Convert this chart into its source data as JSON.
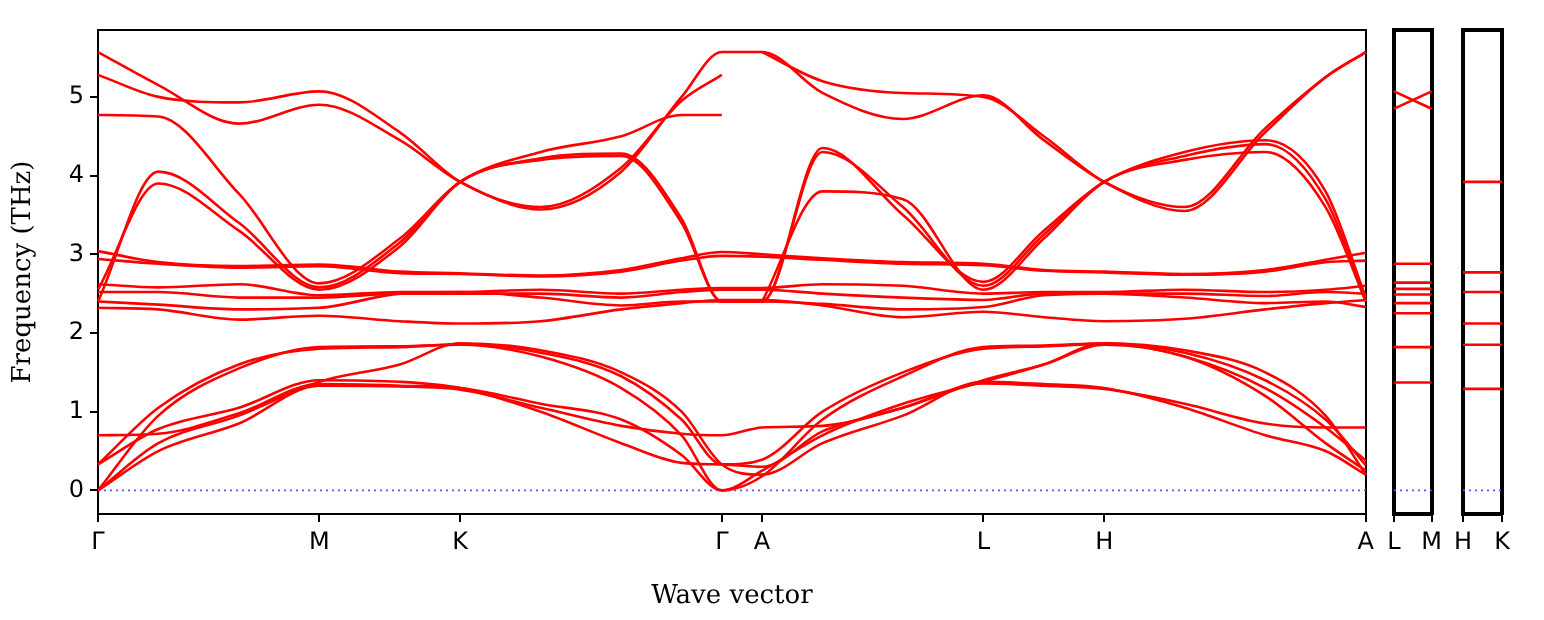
{
  "chart_data": [
    {
      "type": "line",
      "xlabel": "Wave vector",
      "ylabel": "Frequency (THz)",
      "marker": "none",
      "ylim": [
        -0.3,
        5.85
      ],
      "yticks": [
        0,
        1,
        2,
        3,
        4,
        5
      ],
      "categories": [
        "Γ",
        null,
        null,
        null,
        null,
        null,
        null,
        null,
        null,
        null,
        null,
        "M",
        null,
        null,
        null,
        null,
        null,
        null,
        "K",
        null,
        null,
        null,
        null,
        null,
        null,
        null,
        null,
        null,
        null,
        null,
        null,
        "Γ",
        null,
        "A",
        null,
        null,
        null,
        null,
        null,
        null,
        null,
        null,
        null,
        null,
        "L",
        null,
        null,
        null,
        null,
        null,
        "H",
        null,
        null,
        null,
        null,
        null,
        null,
        null,
        null,
        null,
        null,
        null,
        null,
        "A"
      ],
      "ref_lines": [
        {
          "axis": "y",
          "value": 0,
          "color": "#5555ff",
          "line_style": "dotted"
        }
      ],
      "series": [
        {
          "color": "#ff0000",
          "values": [
            5.57,
            null,
            null,
            5.15,
            null,
            null,
            null,
            4.66,
            null,
            null,
            null,
            4.9,
            null,
            null,
            null,
            4.45,
            null,
            null,
            3.92,
            null,
            null,
            null,
            3.57,
            null,
            null,
            null,
            4.05,
            null,
            null,
            5.0,
            null,
            5.57,
            null,
            5.57,
            null,
            null,
            5.05,
            null,
            null,
            null,
            4.72,
            null,
            null,
            null,
            5.02,
            null,
            null,
            4.45,
            null,
            null,
            3.92,
            null,
            null,
            null,
            3.55,
            null,
            null,
            null,
            4.55,
            null,
            null,
            5.25,
            null,
            5.57
          ]
        },
        {
          "color": "#ff0000",
          "values": [
            5.28,
            null,
            null,
            5.0,
            null,
            null,
            null,
            4.93,
            null,
            null,
            null,
            5.07,
            null,
            null,
            null,
            4.55,
            null,
            null,
            3.92,
            null,
            null,
            null,
            3.6,
            null,
            null,
            null,
            4.1,
            null,
            null,
            4.95,
            null,
            5.28,
            null,
            null,
            null,
            null,
            null,
            null,
            null,
            null,
            null,
            null,
            null,
            null,
            null,
            null,
            null,
            null,
            null,
            null,
            null,
            null,
            null,
            null,
            null,
            null,
            null,
            null,
            null,
            null,
            null,
            null,
            null,
            null
          ]
        },
        {
          "color": "#ff0000",
          "values": [
            4.77,
            null,
            null,
            4.75,
            null,
            null,
            null,
            3.77,
            null,
            null,
            null,
            2.63,
            null,
            null,
            null,
            3.2,
            null,
            null,
            3.92,
            null,
            null,
            null,
            4.3,
            null,
            null,
            null,
            4.5,
            null,
            null,
            4.77,
            null,
            4.77,
            null,
            null,
            null,
            null,
            null,
            null,
            null,
            null,
            null,
            null,
            null,
            null,
            null,
            null,
            null,
            null,
            null,
            null,
            null,
            null,
            null,
            null,
            null,
            null,
            null,
            null,
            null,
            null,
            null,
            null,
            null,
            null
          ]
        },
        {
          "color": "#ff0000",
          "values": [
            null,
            null,
            null,
            null,
            null,
            null,
            null,
            null,
            null,
            null,
            null,
            null,
            null,
            null,
            null,
            null,
            null,
            null,
            null,
            null,
            null,
            null,
            null,
            null,
            null,
            null,
            null,
            null,
            null,
            null,
            null,
            null,
            null,
            5.57,
            null,
            null,
            5.2,
            null,
            null,
            null,
            5.05,
            null,
            null,
            null,
            5.0,
            null,
            null,
            4.5,
            null,
            null,
            3.92,
            null,
            null,
            null,
            3.6,
            null,
            null,
            null,
            4.6,
            null,
            null,
            5.25,
            null,
            5.57
          ]
        },
        {
          "color": "#ff0000",
          "values": [
            2.4,
            null,
            null,
            4.05,
            null,
            null,
            null,
            3.4,
            null,
            null,
            null,
            2.58,
            null,
            null,
            null,
            3.15,
            null,
            null,
            3.92,
            null,
            null,
            null,
            4.22,
            null,
            null,
            null,
            4.28,
            null,
            null,
            3.45,
            null,
            2.4,
            null,
            2.4,
            null,
            null,
            4.35,
            null,
            null,
            null,
            3.5,
            null,
            null,
            null,
            2.65,
            null,
            null,
            3.3,
            null,
            null,
            3.92,
            null,
            null,
            null,
            4.3,
            null,
            null,
            null,
            4.45,
            null,
            null,
            3.8,
            null,
            2.45
          ]
        },
        {
          "color": "#ff0000",
          "values": [
            2.55,
            null,
            null,
            3.9,
            null,
            null,
            null,
            3.3,
            null,
            null,
            null,
            2.55,
            null,
            null,
            null,
            3.1,
            null,
            null,
            3.92,
            null,
            null,
            null,
            4.2,
            null,
            null,
            null,
            4.25,
            null,
            null,
            3.4,
            null,
            2.4,
            null,
            2.4,
            null,
            null,
            4.3,
            null,
            null,
            null,
            3.6,
            null,
            null,
            null,
            2.6,
            null,
            null,
            3.25,
            null,
            null,
            3.92,
            null,
            null,
            null,
            4.25,
            null,
            null,
            null,
            4.4,
            null,
            null,
            3.7,
            null,
            2.4
          ]
        },
        {
          "color": "#ff0000",
          "values": [
            null,
            null,
            null,
            null,
            null,
            null,
            null,
            null,
            null,
            null,
            null,
            null,
            null,
            null,
            null,
            null,
            null,
            null,
            null,
            null,
            null,
            null,
            null,
            null,
            null,
            null,
            null,
            null,
            null,
            null,
            null,
            null,
            null,
            2.4,
            null,
            null,
            3.8,
            null,
            null,
            null,
            3.7,
            null,
            null,
            null,
            2.55,
            null,
            null,
            3.2,
            null,
            null,
            3.92,
            null,
            null,
            null,
            4.2,
            null,
            null,
            null,
            4.3,
            null,
            null,
            3.6,
            null,
            2.4
          ]
        },
        {
          "color": "#ff0000",
          "values": [
            3.04,
            null,
            null,
            2.9,
            null,
            null,
            null,
            2.85,
            null,
            null,
            null,
            2.87,
            null,
            null,
            null,
            2.78,
            null,
            null,
            2.76,
            null,
            null,
            null,
            2.73,
            null,
            null,
            null,
            2.8,
            null,
            null,
            2.95,
            null,
            3.03,
            null,
            3.0,
            null,
            null,
            2.95,
            null,
            null,
            null,
            2.9,
            null,
            null,
            null,
            2.88,
            null,
            null,
            2.8,
            null,
            null,
            2.78,
            null,
            null,
            null,
            2.75,
            null,
            null,
            null,
            2.8,
            null,
            null,
            2.93,
            null,
            3.02
          ]
        },
        {
          "color": "#ff0000",
          "values": [
            2.94,
            null,
            null,
            2.88,
            null,
            null,
            null,
            2.83,
            null,
            null,
            null,
            2.85,
            null,
            null,
            null,
            2.76,
            null,
            null,
            2.75,
            null,
            null,
            null,
            2.72,
            null,
            null,
            null,
            2.78,
            null,
            null,
            2.92,
            null,
            2.98,
            null,
            2.97,
            null,
            null,
            2.93,
            null,
            null,
            null,
            2.88,
            null,
            null,
            null,
            2.86,
            null,
            null,
            2.79,
            null,
            null,
            2.77,
            null,
            null,
            null,
            2.74,
            null,
            null,
            null,
            2.78,
            null,
            null,
            2.9,
            null,
            2.92
          ]
        },
        {
          "color": "#ff0000",
          "values": [
            2.62,
            null,
            null,
            2.58,
            null,
            null,
            null,
            2.62,
            null,
            null,
            null,
            2.48,
            null,
            null,
            null,
            2.52,
            null,
            null,
            2.52,
            null,
            null,
            null,
            2.55,
            null,
            null,
            null,
            2.5,
            null,
            null,
            2.55,
            null,
            2.57,
            null,
            2.57,
            null,
            null,
            2.62,
            null,
            null,
            null,
            2.6,
            null,
            null,
            null,
            2.5,
            null,
            null,
            2.52,
            null,
            null,
            2.52,
            null,
            null,
            null,
            2.55,
            null,
            null,
            null,
            2.52,
            null,
            null,
            2.55,
            null,
            2.6
          ]
        },
        {
          "color": "#ff0000",
          "values": [
            2.52,
            null,
            null,
            2.52,
            null,
            null,
            null,
            2.45,
            null,
            null,
            null,
            2.45,
            null,
            null,
            null,
            2.5,
            null,
            null,
            2.5,
            null,
            null,
            null,
            2.5,
            null,
            null,
            null,
            2.45,
            null,
            null,
            2.52,
            null,
            2.55,
            null,
            2.55,
            null,
            null,
            2.5,
            null,
            null,
            null,
            2.45,
            null,
            null,
            null,
            2.42,
            null,
            null,
            2.5,
            null,
            null,
            2.5,
            null,
            null,
            null,
            2.5,
            null,
            null,
            null,
            2.47,
            null,
            null,
            2.52,
            null,
            2.5
          ]
        },
        {
          "color": "#ff0000",
          "values": [
            2.32,
            null,
            null,
            2.3,
            null,
            null,
            null,
            2.17,
            null,
            null,
            null,
            2.22,
            null,
            null,
            null,
            2.15,
            null,
            null,
            2.12,
            null,
            null,
            null,
            2.15,
            null,
            null,
            null,
            2.3,
            null,
            null,
            2.38,
            null,
            2.42,
            null,
            2.42,
            null,
            null,
            2.35,
            null,
            null,
            null,
            2.2,
            null,
            null,
            null,
            2.27,
            null,
            null,
            2.2,
            null,
            null,
            2.15,
            null,
            null,
            null,
            2.18,
            null,
            null,
            null,
            2.3,
            null,
            null,
            2.38,
            null,
            2.42
          ]
        },
        {
          "color": "#ff0000",
          "values": [
            2.4,
            null,
            null,
            2.36,
            null,
            null,
            null,
            2.3,
            null,
            null,
            null,
            2.32,
            null,
            null,
            null,
            2.5,
            null,
            null,
            2.52,
            null,
            null,
            null,
            2.45,
            null,
            null,
            null,
            2.35,
            null,
            null,
            2.4,
            null,
            2.4,
            null,
            2.4,
            null,
            null,
            2.37,
            null,
            null,
            null,
            2.3,
            null,
            null,
            null,
            2.33,
            null,
            null,
            2.48,
            null,
            null,
            2.5,
            null,
            null,
            null,
            2.45,
            null,
            null,
            null,
            2.38,
            null,
            null,
            2.4,
            null,
            2.33
          ]
        },
        {
          "color": "#ff0000",
          "values": [
            0,
            null,
            null,
            0.95,
            null,
            null,
            null,
            1.55,
            null,
            null,
            null,
            1.82,
            null,
            null,
            null,
            1.83,
            null,
            null,
            1.85,
            null,
            null,
            null,
            1.7,
            null,
            null,
            null,
            1.3,
            null,
            null,
            0.7,
            null,
            0,
            null,
            0.18,
            null,
            null,
            0.9,
            null,
            null,
            null,
            1.45,
            null,
            null,
            null,
            1.82,
            null,
            null,
            1.84,
            null,
            null,
            1.87,
            null,
            null,
            null,
            1.7,
            null,
            null,
            null,
            1.3,
            null,
            null,
            0.8,
            null,
            0.38
          ]
        },
        {
          "color": "#ff0000",
          "values": [
            0.33,
            null,
            null,
            1.05,
            null,
            null,
            null,
            1.6,
            null,
            null,
            null,
            1.8,
            null,
            null,
            null,
            1.82,
            null,
            null,
            1.86,
            null,
            null,
            null,
            1.75,
            null,
            null,
            null,
            1.45,
            null,
            null,
            0.9,
            null,
            0.33,
            null,
            0.39,
            null,
            null,
            1.0,
            null,
            null,
            null,
            1.5,
            null,
            null,
            null,
            1.8,
            null,
            null,
            1.83,
            null,
            null,
            1.86,
            null,
            null,
            null,
            1.75,
            null,
            null,
            null,
            1.4,
            null,
            null,
            0.9,
            null,
            0.32
          ]
        },
        {
          "color": "#ff0000",
          "values": [
            0,
            null,
            null,
            0.6,
            null,
            null,
            null,
            0.95,
            null,
            null,
            null,
            1.38,
            null,
            null,
            null,
            1.6,
            null,
            null,
            1.87,
            null,
            null,
            null,
            1.78,
            null,
            null,
            null,
            1.5,
            null,
            null,
            1.0,
            null,
            0.33,
            null,
            0.2,
            null,
            null,
            0.6,
            null,
            null,
            null,
            0.95,
            null,
            null,
            null,
            1.38,
            null,
            null,
            1.35,
            null,
            null,
            1.3,
            null,
            null,
            null,
            1.05,
            null,
            null,
            null,
            0.7,
            null,
            null,
            0.5,
            null,
            0.2
          ]
        },
        {
          "color": "#ff0000",
          "values": [
            0,
            null,
            null,
            0.5,
            null,
            null,
            null,
            0.85,
            null,
            null,
            null,
            1.33,
            null,
            null,
            null,
            1.32,
            null,
            null,
            1.28,
            null,
            null,
            null,
            1.05,
            null,
            null,
            null,
            0.82,
            null,
            null,
            0.72,
            null,
            0.7,
            null,
            0.8,
            null,
            null,
            0.82,
            null,
            null,
            null,
            1.05,
            null,
            null,
            null,
            1.36,
            null,
            null,
            1.33,
            null,
            null,
            1.29,
            null,
            null,
            null,
            1.1,
            null,
            null,
            null,
            0.85,
            null,
            null,
            0.8,
            null,
            0.8
          ]
        },
        {
          "color": "#ff0000",
          "values": [
            0.7,
            null,
            null,
            0.72,
            null,
            null,
            null,
            0.98,
            null,
            null,
            null,
            1.35,
            null,
            null,
            null,
            1.33,
            null,
            null,
            1.3,
            null,
            null,
            null,
            1.1,
            null,
            null,
            null,
            0.9,
            null,
            null,
            0.45,
            null,
            0,
            null,
            0.25,
            null,
            null,
            0.7,
            null,
            null,
            null,
            1.1,
            null,
            null,
            null,
            1.38,
            null,
            null,
            1.6,
            null,
            null,
            1.87,
            null,
            null,
            null,
            1.78,
            null,
            null,
            null,
            1.5,
            null,
            null,
            0.95,
            null,
            0.2
          ]
        },
        {
          "color": "#ff0000",
          "values": [
            0.33,
            null,
            null,
            0.78,
            null,
            null,
            null,
            1.05,
            null,
            null,
            null,
            1.4,
            null,
            null,
            null,
            1.38,
            null,
            null,
            1.3,
            null,
            null,
            null,
            1.0,
            null,
            null,
            null,
            0.6,
            null,
            null,
            0.35,
            null,
            0.33,
            null,
            0.3,
            null,
            null,
            0.75,
            null,
            null,
            null,
            1.05,
            null,
            null,
            null,
            1.4,
            null,
            null,
            1.6,
            null,
            null,
            1.85,
            null,
            null,
            null,
            1.7,
            null,
            null,
            null,
            1.2,
            null,
            null,
            0.6,
            null,
            0.25
          ]
        }
      ]
    },
    {
      "type": "line",
      "marker": "none",
      "tick_labels": "x",
      "ylim": [
        -0.3,
        5.85
      ],
      "yticks": [
        0,
        1,
        2,
        3,
        4,
        5
      ],
      "categories": [
        "L",
        "M"
      ],
      "ref_lines": [
        {
          "axis": "y",
          "value": 0,
          "color": "#5555ff",
          "line_style": "dotted"
        }
      ],
      "series": [
        {
          "color": "#ff0000",
          "values": [
            5.07,
            4.85
          ]
        },
        {
          "color": "#ff0000",
          "values": [
            4.85,
            5.07
          ]
        },
        {
          "color": "#ff0000",
          "values": [
            2.88,
            2.88
          ]
        },
        {
          "color": "#ff0000",
          "values": [
            2.64,
            2.64
          ]
        },
        {
          "color": "#ff0000",
          "values": [
            2.56,
            2.56
          ]
        },
        {
          "color": "#ff0000",
          "values": [
            2.49,
            2.49
          ]
        },
        {
          "color": "#ff0000",
          "values": [
            2.38,
            2.38
          ]
        },
        {
          "color": "#ff0000",
          "values": [
            2.25,
            2.25
          ]
        },
        {
          "color": "#ff0000",
          "values": [
            1.82,
            1.82
          ]
        },
        {
          "color": "#ff0000",
          "values": [
            1.37,
            1.37
          ]
        }
      ]
    },
    {
      "type": "line",
      "marker": "none",
      "tick_labels": "x",
      "ylim": [
        -0.3,
        5.85
      ],
      "yticks": [
        0,
        1,
        2,
        3,
        4,
        5
      ],
      "categories": [
        "H",
        "K"
      ],
      "ref_lines": [
        {
          "axis": "y",
          "value": 0,
          "color": "#5555ff",
          "line_style": "dotted"
        }
      ],
      "series": [
        {
          "color": "#ff0000",
          "values": [
            3.92,
            3.92
          ]
        },
        {
          "color": "#ff0000",
          "values": [
            2.77,
            2.77
          ]
        },
        {
          "color": "#ff0000",
          "values": [
            2.52,
            2.52
          ]
        },
        {
          "color": "#ff0000",
          "values": [
            2.12,
            2.12
          ]
        },
        {
          "color": "#ff0000",
          "values": [
            1.85,
            1.85
          ]
        },
        {
          "color": "#ff0000",
          "values": [
            1.29,
            1.29
          ]
        }
      ]
    }
  ]
}
